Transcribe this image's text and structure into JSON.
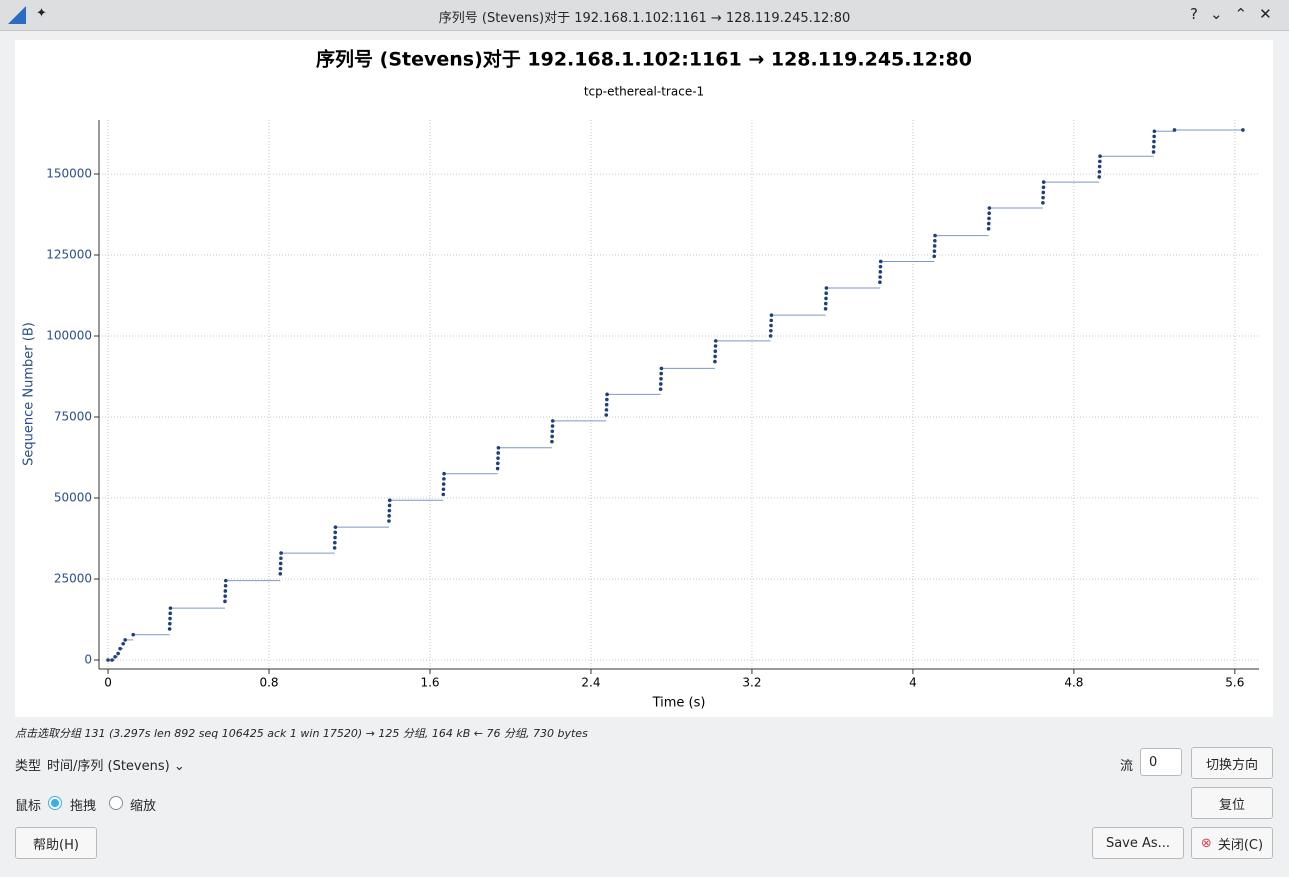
{
  "window_title": "序列号 (Stevens)对于 192.168.1.102:1161 → 128.119.245.12:80",
  "chart_data": {
    "type": "scatter-step",
    "title": "序列号 (Stevens)对于 192.168.1.102:1161 → 128.119.245.12:80",
    "subtitle": "tcp-ethereal-trace-1",
    "x_label": "Time (s)",
    "y_label": "Sequence Number (B)",
    "grid": true,
    "xlim": [
      -0.045,
      5.72
    ],
    "ylim": [
      -2780,
      166670
    ],
    "xticks": [
      0,
      0.8,
      1.6,
      2.4,
      3.2,
      4,
      4.8,
      5.6
    ],
    "yticks": [
      0,
      25000,
      50000,
      75000,
      100000,
      125000,
      150000
    ],
    "series": [
      {
        "color": "#1f3f7a",
        "x": [
          0,
          0.02,
          0.035,
          0.05,
          0.06,
          0.075,
          0.085,
          0.125,
          0.306,
          0.307,
          0.308,
          0.309,
          0.31,
          0.581,
          0.582,
          0.583,
          0.584,
          0.585,
          0.856,
          0.857,
          0.858,
          0.859,
          0.86,
          1.126,
          1.127,
          1.128,
          1.129,
          1.13,
          1.396,
          1.397,
          1.398,
          1.399,
          1.4,
          1.666,
          1.667,
          1.668,
          1.669,
          1.67,
          1.936,
          1.937,
          1.938,
          1.939,
          1.94,
          2.206,
          2.207,
          2.208,
          2.209,
          2.21,
          2.476,
          2.477,
          2.478,
          2.479,
          2.48,
          2.746,
          2.747,
          2.748,
          2.749,
          2.75,
          3.016,
          3.017,
          3.018,
          3.019,
          3.02,
          3.293,
          3.294,
          3.295,
          3.296,
          3.297,
          3.566,
          3.567,
          3.568,
          3.569,
          3.57,
          3.836,
          3.837,
          3.838,
          3.839,
          3.84,
          4.106,
          4.107,
          4.108,
          4.109,
          4.11,
          4.376,
          4.377,
          4.378,
          4.379,
          4.38,
          4.646,
          4.647,
          4.648,
          4.649,
          4.65,
          4.926,
          4.927,
          4.928,
          4.929,
          4.93,
          5.196,
          5.197,
          5.198,
          5.199,
          5.2,
          5.3,
          5.64
        ],
        "values": [
          0,
          0,
          1000,
          2000,
          3500,
          5000,
          6200,
          7800,
          9600,
          11200,
          12800,
          14400,
          16000,
          18100,
          19700,
          21300,
          22900,
          24500,
          26600,
          28200,
          29800,
          31400,
          33000,
          34600,
          36200,
          37800,
          39400,
          41000,
          42900,
          44500,
          46100,
          47700,
          49300,
          51100,
          52700,
          54300,
          55900,
          57500,
          59100,
          60700,
          62300,
          63900,
          65500,
          67400,
          69000,
          70600,
          72200,
          73800,
          75600,
          77200,
          78800,
          80400,
          82000,
          83600,
          85200,
          86800,
          88400,
          90000,
          92100,
          93700,
          95300,
          96900,
          98500,
          100025,
          101625,
          103225,
          104825,
          106425,
          108400,
          110000,
          111600,
          113200,
          114800,
          116600,
          118200,
          119800,
          121400,
          123000,
          124600,
          126200,
          127800,
          129400,
          131000,
          133100,
          134700,
          136300,
          137900,
          139500,
          141100,
          142700,
          144300,
          145900,
          147500,
          149100,
          150700,
          152300,
          153900,
          155500,
          156800,
          158400,
          160000,
          161600,
          163200,
          163600,
          163600
        ]
      }
    ]
  },
  "status": "点击选取分组 131 (3.297s len 892 seq 106425 ack 1 win 17520) → 125 分组, 164 kB ← 76 分组, 730 bytes",
  "controls": {
    "type_label": "类型",
    "type_value": "时间/序列 (Stevens)",
    "stream_label": "流",
    "stream_value": "0",
    "switch_direction": "切换方向",
    "mouse_label": "鼠标",
    "drag": "拖拽",
    "zoom": "缩放",
    "reset": "复位",
    "help": "帮助(H)",
    "save_as": "Save As...",
    "close": "关闭(C)"
  }
}
